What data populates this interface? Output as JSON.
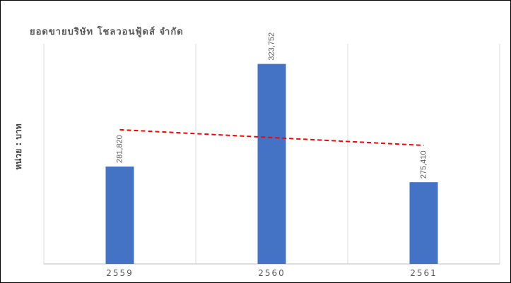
{
  "chart_data": {
    "type": "bar",
    "title": "ยอดขายบริษัท โชลวอนฟู้ดส์ จำกัด",
    "ylabel": "หน่วย : บาท",
    "xlabel": "",
    "categories": [
      "2559",
      "2560",
      "2561"
    ],
    "values": [
      281820,
      323752,
      275410
    ],
    "data_labels": [
      "281,820",
      "323,752",
      "275,410"
    ],
    "ylim": [
      242000,
      332000
    ],
    "bar_color": "#4472c4",
    "trendline": {
      "type": "linear",
      "color": "#ff0000",
      "style": "dashed"
    },
    "grid": "vertical",
    "legend": "none"
  }
}
